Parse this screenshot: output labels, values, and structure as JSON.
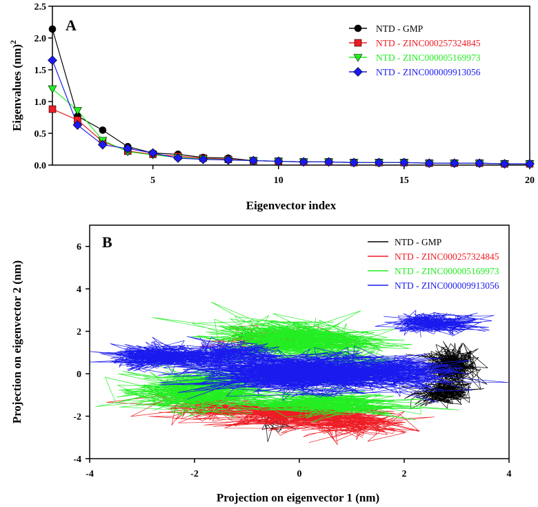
{
  "chart_data": [
    {
      "type": "line",
      "panel_label": "A",
      "xlabel": "Eigenvector index",
      "ylabel": "Eigenvalues (nm)",
      "ylabel_superscript": "2",
      "xlim": [
        1,
        20
      ],
      "ylim": [
        0,
        2.5
      ],
      "xticks": [
        5,
        10,
        15,
        20
      ],
      "yticks": [
        0.0,
        0.5,
        1.0,
        1.5,
        2.0,
        2.5
      ],
      "ytick_labels": [
        "0.0",
        "0.5",
        "1.0",
        "1.5",
        "2.0",
        "2.5"
      ],
      "grid": false,
      "legend_position": "top-right",
      "x": [
        1,
        2,
        3,
        4,
        5,
        6,
        7,
        8,
        9,
        10,
        11,
        12,
        13,
        14,
        15,
        16,
        17,
        18,
        19,
        20
      ],
      "series": [
        {
          "name": "NTD - GMP",
          "color": "#000000",
          "marker": "circle",
          "values": [
            2.14,
            0.77,
            0.55,
            0.29,
            0.19,
            0.17,
            0.12,
            0.11,
            0.07,
            0.06,
            0.05,
            0.05,
            0.04,
            0.04,
            0.04,
            0.03,
            0.03,
            0.03,
            0.02,
            0.02
          ]
        },
        {
          "name": "NTD - ZINC000257324845",
          "color": "#ee1c24",
          "marker": "square",
          "values": [
            0.88,
            0.71,
            0.37,
            0.22,
            0.17,
            0.14,
            0.11,
            0.09,
            0.07,
            0.06,
            0.05,
            0.05,
            0.04,
            0.04,
            0.04,
            0.03,
            0.03,
            0.03,
            0.02,
            0.02
          ]
        },
        {
          "name": "NTD - ZINC000005169973",
          "color": "#22ee22",
          "marker": "triangle-down",
          "values": [
            1.2,
            0.86,
            0.39,
            0.21,
            0.16,
            0.12,
            0.1,
            0.08,
            0.07,
            0.06,
            0.05,
            0.05,
            0.04,
            0.04,
            0.04,
            0.03,
            0.03,
            0.03,
            0.02,
            0.02
          ]
        },
        {
          "name": "NTD - ZINC000009913056",
          "color": "#1a1aee",
          "marker": "diamond",
          "values": [
            1.65,
            0.63,
            0.32,
            0.26,
            0.19,
            0.11,
            0.09,
            0.08,
            0.07,
            0.06,
            0.05,
            0.05,
            0.04,
            0.04,
            0.04,
            0.03,
            0.03,
            0.03,
            0.02,
            0.02
          ]
        }
      ]
    },
    {
      "type": "line",
      "panel_label": "B",
      "xlabel": "Projection on eigenvector 1 (nm)",
      "ylabel": "Projection on eigenvector 2 (nm)",
      "xlim": [
        -4,
        4
      ],
      "ylim": [
        -4,
        7
      ],
      "xticks": [
        -4,
        -2,
        0,
        2,
        4
      ],
      "yticks": [
        -4,
        -2,
        0,
        2,
        4,
        6
      ],
      "grid": false,
      "legend_position": "top-right",
      "series": [
        {
          "name": "NTD - GMP",
          "color": "#000000",
          "clusters": [
            {
              "cx": 2.9,
              "cy": 0.4,
              "sx": 0.25,
              "sy": 0.45,
              "n": 320
            },
            {
              "cx": 2.8,
              "cy": -0.9,
              "sx": 0.3,
              "sy": 0.3,
              "n": 200
            },
            {
              "cx": -0.5,
              "cy": -2.2,
              "sx": 0.18,
              "sy": 0.25,
              "n": 50
            },
            {
              "cx": -1.1,
              "cy": 1.8,
              "sx": 0.1,
              "sy": 0.1,
              "n": 15
            }
          ]
        },
        {
          "name": "NTD - ZINC000257324845",
          "color": "#ee1c24",
          "clusters": [
            {
              "cx": -0.2,
              "cy": -1.9,
              "sx": 0.85,
              "sy": 0.35,
              "n": 320
            },
            {
              "cx": 1.0,
              "cy": -2.4,
              "sx": 0.6,
              "sy": 0.3,
              "n": 150
            },
            {
              "cx": -1.8,
              "cy": -1.4,
              "sx": 0.5,
              "sy": 0.35,
              "n": 120
            },
            {
              "cx": -0.5,
              "cy": 1.6,
              "sx": 0.7,
              "sy": 0.25,
              "n": 90
            }
          ]
        },
        {
          "name": "NTD - ZINC000005169973",
          "color": "#22ee22",
          "clusters": [
            {
              "cx": -1.9,
              "cy": -0.8,
              "sx": 0.6,
              "sy": 0.5,
              "n": 450
            },
            {
              "cx": -0.1,
              "cy": 1.6,
              "sx": 0.8,
              "sy": 0.5,
              "n": 450
            },
            {
              "cx": 0.4,
              "cy": -1.4,
              "sx": 0.8,
              "sy": 0.3,
              "n": 250
            },
            {
              "cx": 1.0,
              "cy": 0.4,
              "sx": 0.5,
              "sy": 0.5,
              "n": 120
            }
          ]
        },
        {
          "name": "NTD - ZINC000009913056",
          "color": "#1a1aee",
          "clusters": [
            {
              "cx": -2.6,
              "cy": 0.8,
              "sx": 0.5,
              "sy": 0.28,
              "n": 350
            },
            {
              "cx": 0.1,
              "cy": 0.0,
              "sx": 1.0,
              "sy": 0.45,
              "n": 750
            },
            {
              "cx": 2.6,
              "cy": 2.4,
              "sx": 0.45,
              "sy": 0.25,
              "n": 220
            },
            {
              "cx": 1.8,
              "cy": 0.1,
              "sx": 0.6,
              "sy": 0.4,
              "n": 220
            },
            {
              "cx": -1.4,
              "cy": 0.9,
              "sx": 0.5,
              "sy": 0.3,
              "n": 200
            }
          ]
        }
      ]
    }
  ]
}
